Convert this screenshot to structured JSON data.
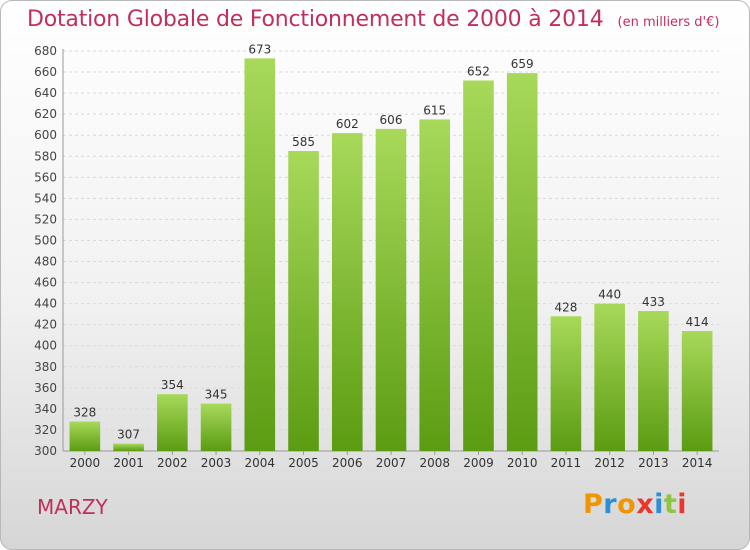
{
  "header": {
    "title": "Dotation Globale de Fonctionnement de 2000 à 2014",
    "unit": "(en milliers d'€)"
  },
  "footer": {
    "city": "MARZY",
    "logo_text": "Proxiti",
    "logo_colors": [
      "#f29400",
      "#2b8fd6",
      "#f29400",
      "#e8382d",
      "#2b8fd6",
      "#8dc63f",
      "#e8382d"
    ]
  },
  "colors": {
    "bar_top": "#a8d95a",
    "bar_bottom": "#5b9c12",
    "title": "#c0305a"
  },
  "chart_data": {
    "type": "bar",
    "categories": [
      "2000",
      "2001",
      "2002",
      "2003",
      "2004",
      "2005",
      "2006",
      "2007",
      "2008",
      "2009",
      "2010",
      "2011",
      "2012",
      "2013",
      "2014"
    ],
    "values": [
      328,
      307,
      354,
      345,
      673,
      585,
      602,
      606,
      615,
      652,
      659,
      428,
      440,
      433,
      414
    ],
    "title": "Dotation Globale de Fonctionnement de 2000 à 2014",
    "ylim": [
      300,
      680
    ],
    "yticks": [
      300,
      320,
      340,
      360,
      380,
      400,
      420,
      440,
      460,
      480,
      500,
      520,
      540,
      560,
      580,
      600,
      620,
      640,
      660,
      680
    ],
    "grid": true
  }
}
